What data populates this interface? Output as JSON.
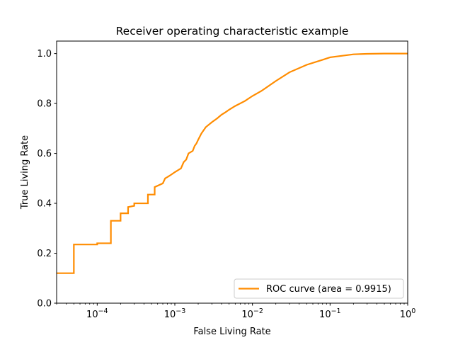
{
  "chart_data": {
    "type": "line",
    "title": "Receiver operating characteristic example",
    "xlabel": "False Living Rate",
    "ylabel": "True Living Rate",
    "xscale": "log",
    "xlim": [
      3e-05,
      1
    ],
    "ylim": [
      0,
      1.05
    ],
    "x_ticks": [
      0.0001,
      0.001,
      0.01,
      0.1,
      1
    ],
    "x_tick_labels": [
      {
        "base": "10",
        "exp": "−4"
      },
      {
        "base": "10",
        "exp": "−3"
      },
      {
        "base": "10",
        "exp": "−2"
      },
      {
        "base": "10",
        "exp": "−1"
      },
      {
        "base": "10",
        "exp": "0"
      }
    ],
    "y_ticks": [
      0.0,
      0.2,
      0.4,
      0.6,
      0.8,
      1.0
    ],
    "y_tick_labels": [
      "0.0",
      "0.2",
      "0.4",
      "0.6",
      "0.8",
      "1.0"
    ],
    "grid": false,
    "legend_position": "lower-right",
    "series": [
      {
        "name": "ROC curve (area = 0.9915)",
        "color": "#ff8c00",
        "step": true,
        "x": [
          3e-05,
          5e-05,
          5e-05,
          0.0001,
          0.0001,
          0.00015,
          0.00015,
          0.0002,
          0.0002,
          0.00025,
          0.00025,
          0.0003,
          0.0003,
          0.00045,
          0.00045,
          0.00055,
          0.00055,
          0.0007,
          0.00075,
          0.0008,
          0.0009,
          0.001,
          0.0012,
          0.0013,
          0.0014,
          0.0015,
          0.0017,
          0.0018,
          0.0019,
          0.002,
          0.0022,
          0.0025,
          0.003,
          0.0035,
          0.004,
          0.0045,
          0.005,
          0.006,
          0.008,
          0.01,
          0.013,
          0.02,
          0.03,
          0.05,
          0.08,
          0.1,
          0.15,
          0.2,
          0.3,
          0.5,
          1.0
        ],
        "y": [
          0.12,
          0.12,
          0.235,
          0.235,
          0.24,
          0.24,
          0.33,
          0.33,
          0.36,
          0.36,
          0.385,
          0.39,
          0.4,
          0.4,
          0.435,
          0.435,
          0.465,
          0.48,
          0.5,
          0.505,
          0.515,
          0.525,
          0.54,
          0.565,
          0.575,
          0.6,
          0.61,
          0.63,
          0.64,
          0.655,
          0.68,
          0.705,
          0.725,
          0.74,
          0.755,
          0.765,
          0.775,
          0.79,
          0.81,
          0.83,
          0.85,
          0.89,
          0.925,
          0.955,
          0.975,
          0.985,
          0.992,
          0.997,
          0.999,
          1.0,
          1.0
        ]
      }
    ]
  }
}
